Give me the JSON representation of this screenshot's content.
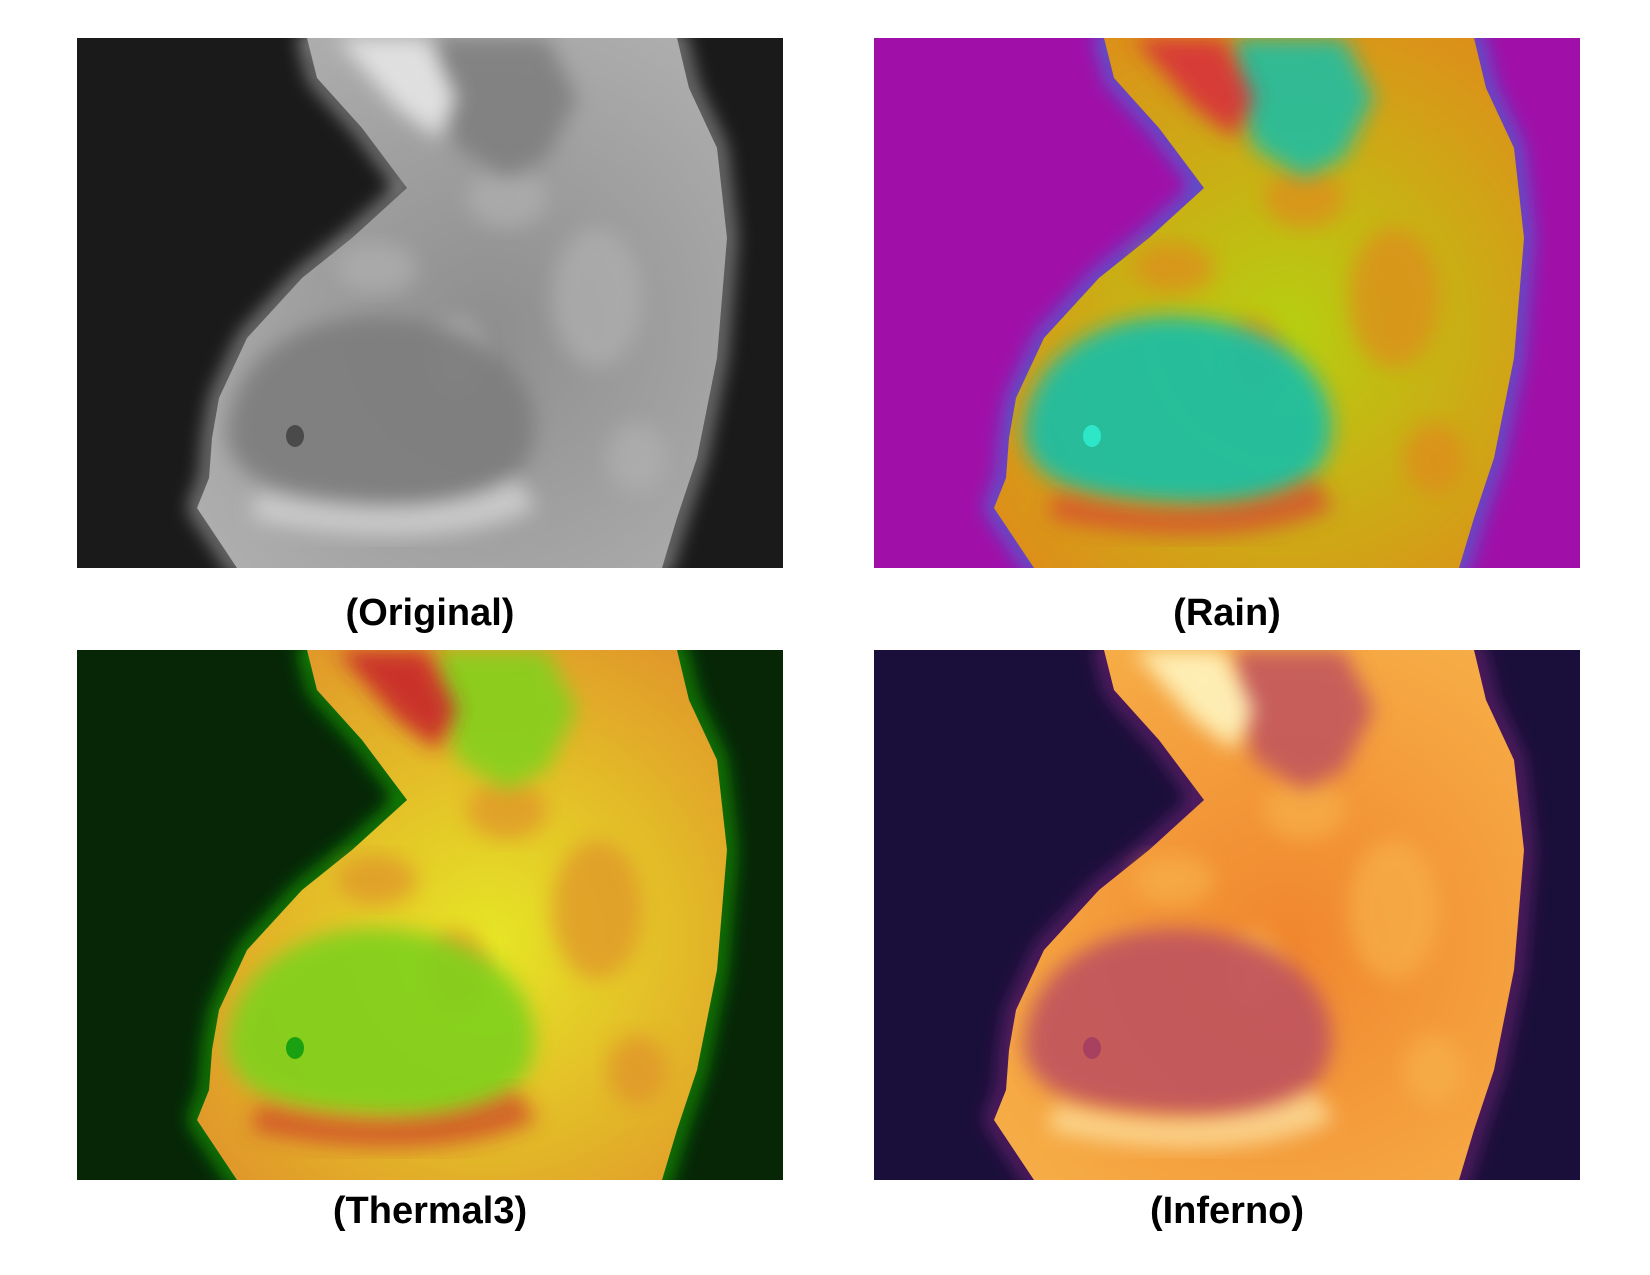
{
  "panels": [
    {
      "caption": "(Original)",
      "palette": "grayscale",
      "colors": {
        "bg": "#1a1a1a",
        "body": "#8e8e8e",
        "breast": "#7d7d7d",
        "hot": "#e6e6e6",
        "warm": "#b0b0b0",
        "edge": "#c8c8c8",
        "nipple": "#4a4a4a"
      }
    },
    {
      "caption": "(Rain)",
      "palette": "rain",
      "colors": {
        "bg": "#a010a8",
        "body": "#b6cf10",
        "breast": "#14bfa9",
        "hot": "#d8303a",
        "warm": "#e08a1a",
        "edge": "#1e90e8",
        "nipple": "#2ee6c8"
      }
    },
    {
      "caption": "(Thermal3)",
      "palette": "thermal3",
      "colors": {
        "bg": "#062606",
        "body": "#e6e626",
        "breast": "#7fd11a",
        "hot": "#c8262a",
        "warm": "#e0922a",
        "edge": "#1bd100",
        "nipple": "#1aa010"
      }
    },
    {
      "caption": "(Inferno)",
      "palette": "inferno",
      "colors": {
        "bg": "#1a0f3a",
        "body": "#f0862e",
        "breast": "#c0525e",
        "hot": "#fff6c0",
        "warm": "#f7b048",
        "edge": "#8e2a8a",
        "nipple": "#a84060"
      }
    }
  ]
}
